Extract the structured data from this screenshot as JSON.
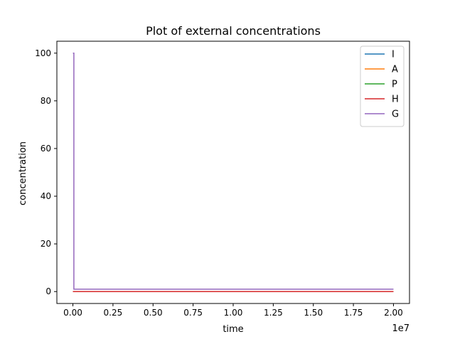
{
  "chart_data": {
    "type": "line",
    "title": "Plot of external concentrations",
    "xlabel": "time",
    "ylabel": "concentration",
    "x_offset_label": "1e7",
    "xlim": [
      -1000000,
      21000000
    ],
    "ylim": [
      -5,
      105
    ],
    "x_ticks": [
      0,
      2500000,
      5000000,
      7500000,
      10000000,
      12500000,
      15000000,
      17500000,
      20000000
    ],
    "x_tick_labels": [
      "0.00",
      "0.25",
      "0.50",
      "0.75",
      "1.00",
      "1.25",
      "1.50",
      "1.75",
      "2.00"
    ],
    "y_ticks": [
      0,
      20,
      40,
      60,
      80,
      100
    ],
    "y_tick_labels": [
      "0",
      "20",
      "40",
      "60",
      "80",
      "100"
    ],
    "grid": false,
    "legend_position": "top-right",
    "series": [
      {
        "name": "I",
        "color": "#1f77b4",
        "points": [
          [
            0,
            0
          ],
          [
            20000000,
            0
          ]
        ]
      },
      {
        "name": "A",
        "color": "#ff7f0e",
        "points": [
          [
            0,
            0
          ],
          [
            20000000,
            0
          ]
        ]
      },
      {
        "name": "P",
        "color": "#2ca02c",
        "points": [
          [
            0,
            0
          ],
          [
            20000000,
            0
          ]
        ]
      },
      {
        "name": "H",
        "color": "#d62728",
        "points": [
          [
            0,
            0
          ],
          [
            20000000,
            0
          ]
        ]
      },
      {
        "name": "G",
        "color": "#9467bd",
        "points": [
          [
            0,
            100
          ],
          [
            60000,
            100
          ],
          [
            60000,
            1
          ],
          [
            20000000,
            1
          ]
        ]
      }
    ]
  }
}
